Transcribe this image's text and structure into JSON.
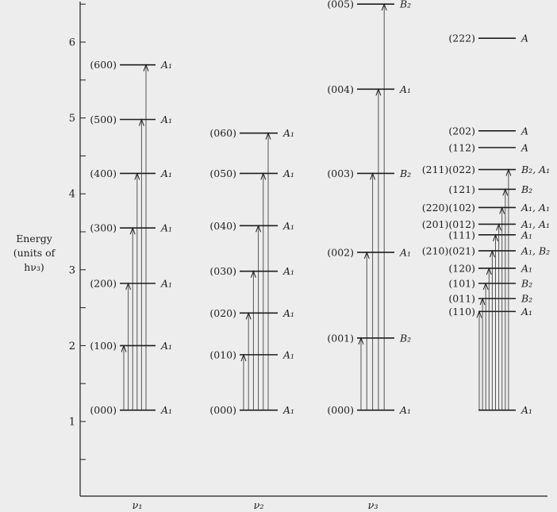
{
  "axis": {
    "title_line1": "Energy",
    "title_line2": "(units of hν₃)",
    "ticks": [
      1,
      2,
      3,
      4,
      5,
      6
    ],
    "range": [
      0.15,
      6.72
    ]
  },
  "columns": [
    {
      "id": "v1",
      "label": "ν₁",
      "levels": [
        {
          "label": "(000)",
          "sym": "A₁",
          "energy": 1.15
        },
        {
          "label": "(100)",
          "sym": "A₁",
          "energy": 2.0
        },
        {
          "label": "(200)",
          "sym": "A₁",
          "energy": 2.82
        },
        {
          "label": "(300)",
          "sym": "A₁",
          "energy": 3.55
        },
        {
          "label": "(400)",
          "sym": "A₁",
          "energy": 4.27
        },
        {
          "label": "(500)",
          "sym": "A₁",
          "energy": 4.98
        },
        {
          "label": "(600)",
          "sym": "A₁",
          "energy": 5.7
        }
      ]
    },
    {
      "id": "v2",
      "label": "ν₂",
      "levels": [
        {
          "label": "(000)",
          "sym": "A₁",
          "energy": 1.15
        },
        {
          "label": "(010)",
          "sym": "A₁",
          "energy": 1.88
        },
        {
          "label": "(020)",
          "sym": "A₁",
          "energy": 2.43
        },
        {
          "label": "(030)",
          "sym": "A₁",
          "energy": 2.98
        },
        {
          "label": "(040)",
          "sym": "A₁",
          "energy": 3.58
        },
        {
          "label": "(050)",
          "sym": "A₁",
          "energy": 4.27
        },
        {
          "label": "(060)",
          "sym": "A₁",
          "energy": 4.8
        }
      ]
    },
    {
      "id": "v3",
      "label": "ν₃",
      "levels": [
        {
          "label": "(000)",
          "sym": "A₁",
          "energy": 1.15
        },
        {
          "label": "(001)",
          "sym": "B₂",
          "energy": 2.1
        },
        {
          "label": "(002)",
          "sym": "A₁",
          "energy": 3.23
        },
        {
          "label": "(003)",
          "sym": "B₂",
          "energy": 4.27
        },
        {
          "label": "(004)",
          "sym": "A₁",
          "energy": 5.38
        },
        {
          "label": "(005)",
          "sym": "B₂",
          "energy": 6.5
        }
      ]
    },
    {
      "id": "combo",
      "label": "",
      "levels": [
        {
          "label": "",
          "sym": "A₁",
          "energy": 1.15
        },
        {
          "label": "(110)",
          "sym": "A₁",
          "energy": 2.45
        },
        {
          "label": "(011)",
          "sym": "B₂",
          "energy": 2.62
        },
        {
          "label": "(101)",
          "sym": "B₂",
          "energy": 2.82
        },
        {
          "label": "(120)",
          "sym": "A₁",
          "energy": 3.02
        },
        {
          "label": "(210)(021)",
          "sym": "A₁, B₂",
          "energy": 3.25
        },
        {
          "label": "(111)",
          "sym": "A₁",
          "energy": 3.46
        },
        {
          "label": "(201)(012)",
          "sym": "A₁, A₁",
          "energy": 3.6
        },
        {
          "label": "(220)(102)",
          "sym": "A₁, A₁",
          "energy": 3.82
        },
        {
          "label": "(121)",
          "sym": "B₂",
          "energy": 4.06
        },
        {
          "label": "(211)(022)",
          "sym": "B₂, A₁",
          "energy": 4.32
        },
        {
          "label": "(112)",
          "sym": "A",
          "energy": 4.61
        },
        {
          "label": "(202)",
          "sym": "A",
          "energy": 4.83
        },
        {
          "label": "(222)",
          "sym": "A",
          "energy": 6.05
        }
      ]
    }
  ]
}
